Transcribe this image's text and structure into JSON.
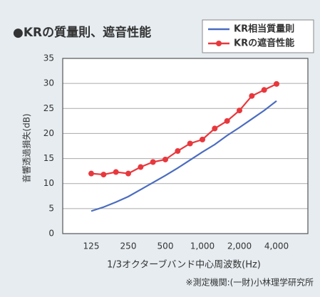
{
  "chart_data": {
    "type": "line",
    "title": "●KRの質量則、遮音性能",
    "y_label": "音響透過損失(dB)",
    "x_label": "1/3オクターブバンド中心周波数(Hz)",
    "note": "※測定機関:(一財)小林理学研究所",
    "categories": [
      "125",
      null,
      null,
      "250",
      null,
      null,
      "500",
      null,
      null,
      "1,000",
      null,
      null,
      "2,000",
      null,
      null,
      "4,000"
    ],
    "series": [
      {
        "name": "KR相当質量則",
        "color": "#4a6cc0",
        "marker": false,
        "values": [
          4.5,
          5.3,
          6.3,
          7.4,
          8.8,
          10.2,
          11.6,
          13.1,
          14.7,
          16.3,
          17.8,
          19.6,
          21.2,
          22.9,
          24.6,
          26.5
        ]
      },
      {
        "name": "KRの遮音性能",
        "color": "#e8383d",
        "marker": true,
        "values": [
          12,
          11.8,
          12.3,
          12,
          13.3,
          14.3,
          14.8,
          16.5,
          18,
          18.8,
          21,
          22.5,
          24.6,
          27.5,
          28.7,
          29.9
        ]
      }
    ],
    "ylim": [
      0,
      35
    ],
    "yticks": [
      0,
      5,
      10,
      15,
      20,
      25,
      30,
      35
    ],
    "grid": true,
    "legend": "upper right"
  }
}
